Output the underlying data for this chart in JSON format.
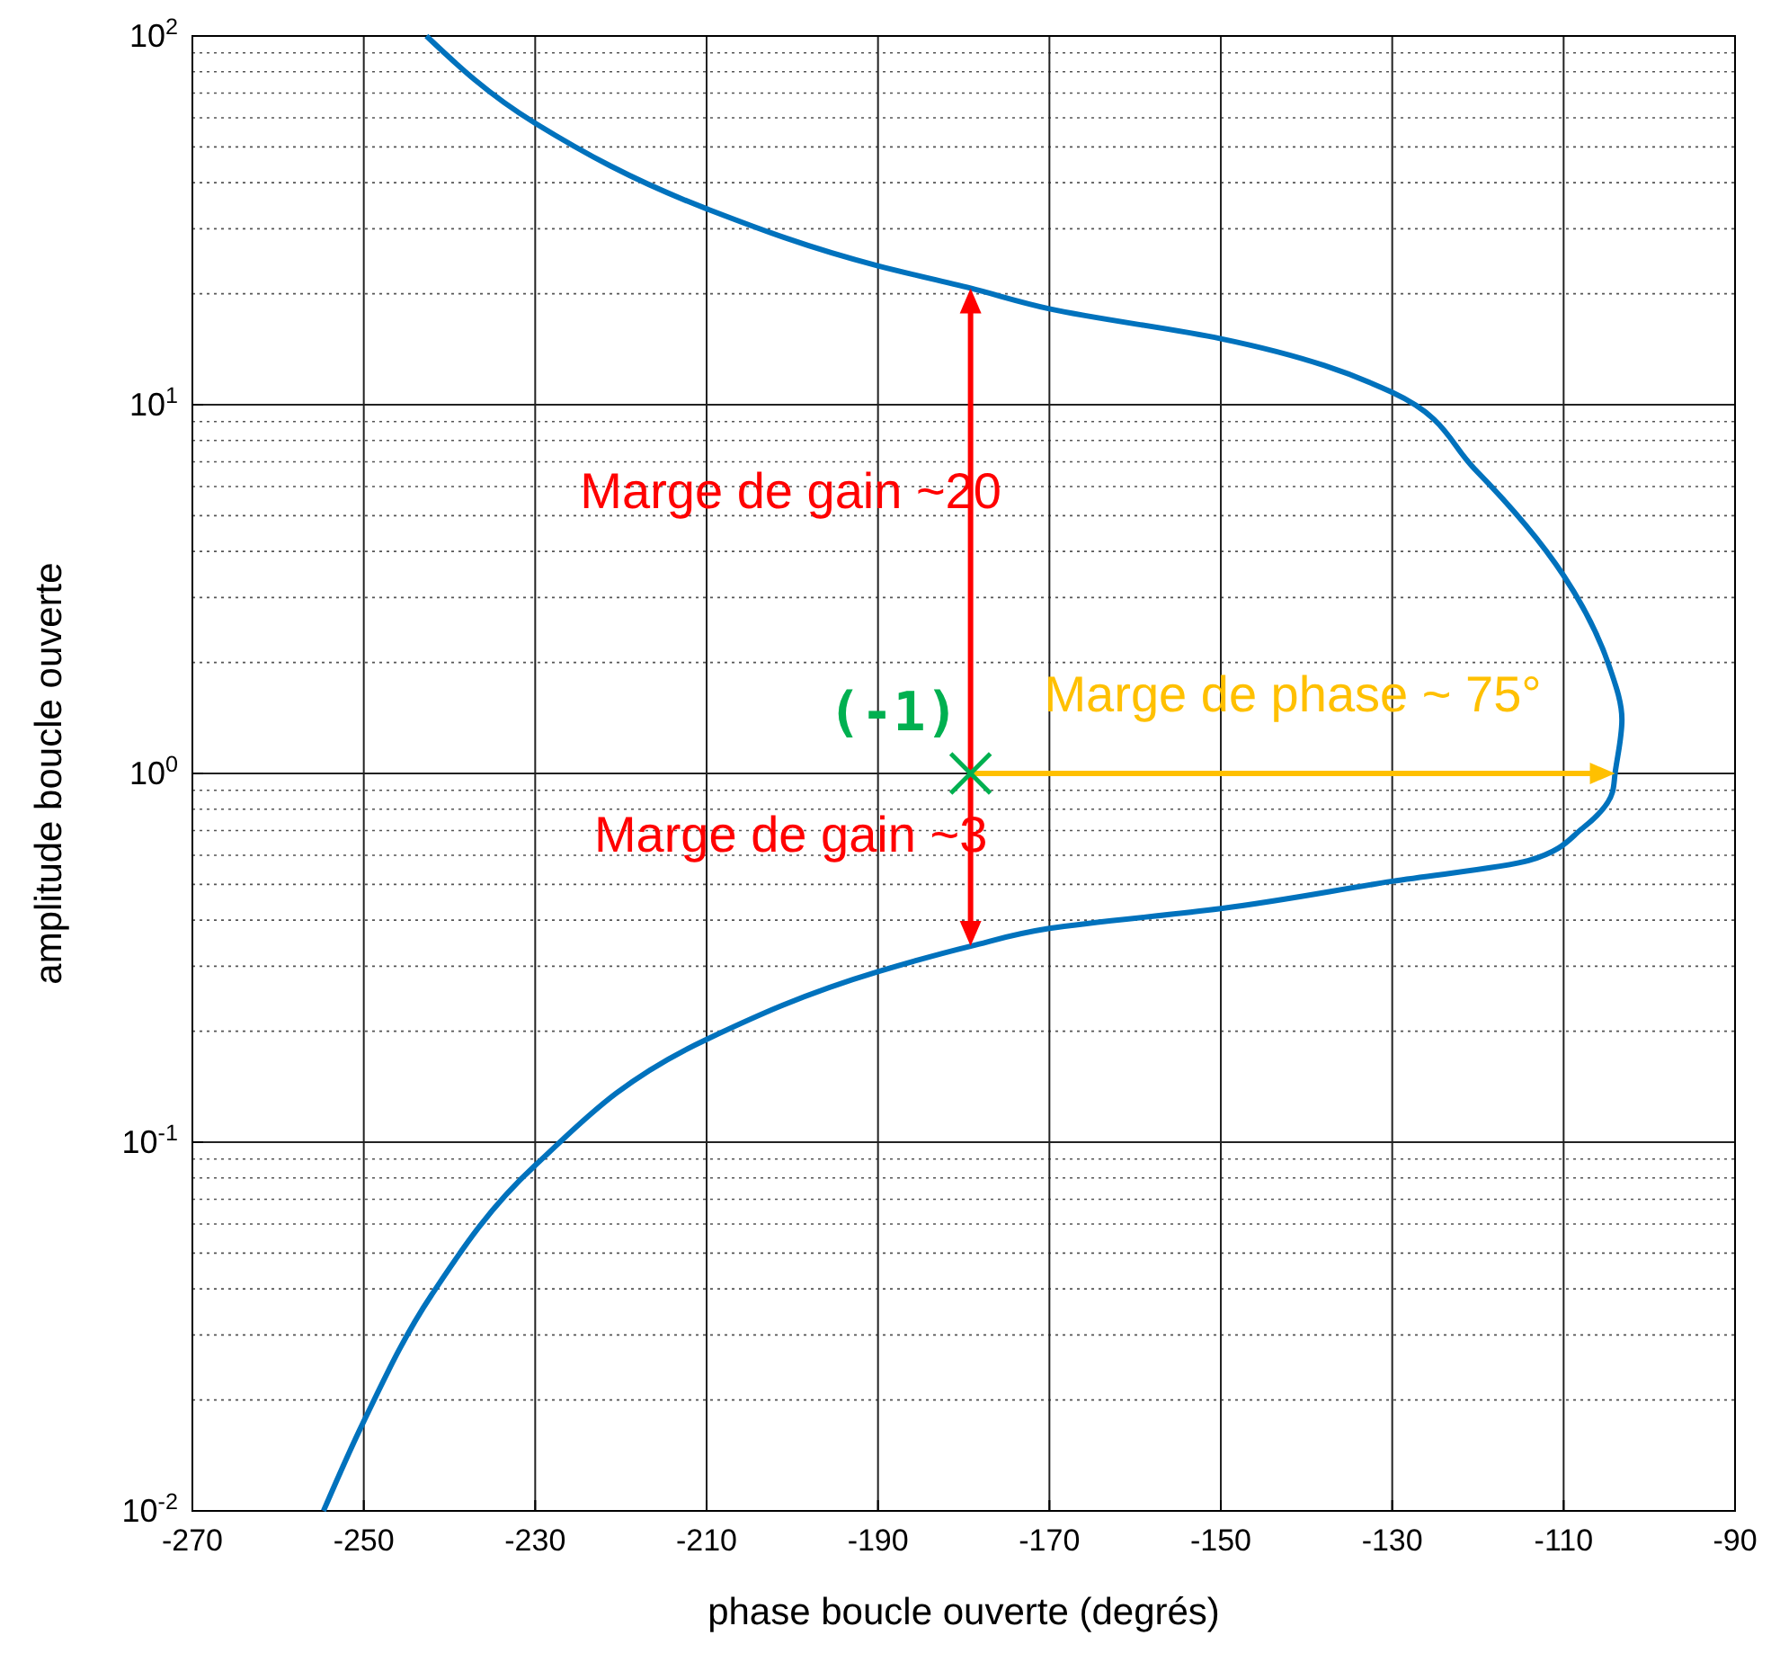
{
  "chart_data": {
    "type": "line",
    "xlabel": "phase boucle ouverte (degrés)",
    "ylabel": "amplitude boucle ouverte",
    "xlim": [
      -270,
      -90
    ],
    "xticks": [
      -270,
      -250,
      -230,
      -210,
      -190,
      -170,
      -150,
      -130,
      -110,
      -90
    ],
    "ylim": [
      0.01,
      100
    ],
    "log": "y",
    "yticks": [
      {
        "value": 0.01,
        "label": "10$^{-2}$"
      },
      {
        "value": 0.1,
        "label": "10$^{-1}$"
      },
      {
        "value": 1,
        "label": "10$^{0}$"
      },
      {
        "value": 10,
        "label": "10$^{1}$"
      },
      {
        "value": 100,
        "label": "10$^{2}$"
      }
    ],
    "grid": true,
    "series": [
      {
        "color": "#0072bd",
        "x": [
          -242.7,
          -230,
          -210,
          -190,
          -179.2,
          -170,
          -150,
          -130,
          -120.4,
          -110,
          -104.7,
          -103.2,
          -104,
          -104.3,
          -107.8,
          -114.1,
          -130,
          -150,
          -170,
          -179.2,
          -190,
          -210,
          -230,
          -242.1,
          -250,
          -254.7
        ],
        "values": [
          100,
          58,
          34,
          23.8,
          20.7,
          18.2,
          15.1,
          10.8,
          6.7,
          3.44,
          1.96,
          1.4,
          1,
          0.89,
          0.71,
          0.58,
          0.51,
          0.43,
          0.38,
          0.34,
          0.29,
          0.19,
          0.0865,
          0.0385,
          0.0175,
          0.01
        ]
      },
      {
        "type": "scatter",
        "color": "#00b050",
        "marker": "cross",
        "x": [
          -179.2
        ],
        "values": [
          1
        ]
      }
    ],
    "annotations": [
      "Marge de gain ~20",
      "Marge de gain ~3",
      "Marge de phase ~ 75°",
      "(-1)"
    ]
  }
}
